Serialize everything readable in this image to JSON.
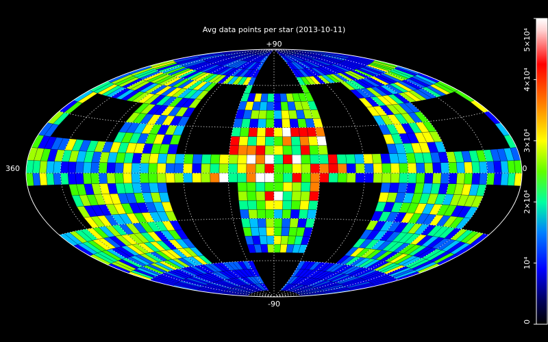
{
  "title": "Avg data points per star (2013-10-11)",
  "map": {
    "projection": "aitoff-hammer",
    "top_label": "+90",
    "bottom_label": "-90",
    "left_label": "360",
    "center_label": "0",
    "lat_lines_deg": [
      -60,
      -30,
      0,
      30,
      60
    ],
    "lon_lines_deg": [
      -150,
      -120,
      -90,
      -60,
      -30,
      0,
      30,
      60,
      90,
      120,
      150
    ]
  },
  "colorbar": {
    "min": 0,
    "max": 50000,
    "ticks": [
      {
        "value": 0,
        "label": "0"
      },
      {
        "value": 10000,
        "label": "10⁴"
      },
      {
        "value": 20000,
        "label": "2×10⁴"
      },
      {
        "value": 30000,
        "label": "3×10⁴"
      },
      {
        "value": 40000,
        "label": "4×10⁴"
      },
      {
        "value": 50000,
        "label": "5×10⁴"
      }
    ],
    "colors": [
      "#000000",
      "#000080",
      "#0000ff",
      "#00a0ff",
      "#00ffa0",
      "#80ff00",
      "#ffff00",
      "#ff8000",
      "#ff0000",
      "#ffffff"
    ]
  }
}
